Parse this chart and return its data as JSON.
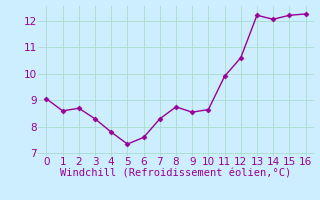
{
  "x": [
    0,
    1,
    2,
    3,
    4,
    5,
    6,
    7,
    8,
    9,
    10,
    11,
    12,
    13,
    14,
    15,
    16
  ],
  "y": [
    9.05,
    8.6,
    8.7,
    8.3,
    7.8,
    7.35,
    7.6,
    8.3,
    8.75,
    8.55,
    8.65,
    9.9,
    10.6,
    12.2,
    12.05,
    12.2,
    12.25
  ],
  "line_color": "#990099",
  "marker": "D",
  "marker_size": 2.5,
  "line_width": 1.0,
  "bg_color": "#cceeff",
  "grid_color": "#aaddcc",
  "xlabel": "Windchill (Refroidissement éolien,°C)",
  "xlabel_fontsize": 7.5,
  "tick_fontsize": 7.5,
  "xlim": [
    -0.5,
    16.5
  ],
  "ylim": [
    6.9,
    12.55
  ],
  "yticks": [
    7,
    8,
    9,
    10,
    11,
    12
  ],
  "xticks": [
    0,
    1,
    2,
    3,
    4,
    5,
    6,
    7,
    8,
    9,
    10,
    11,
    12,
    13,
    14,
    15,
    16
  ]
}
